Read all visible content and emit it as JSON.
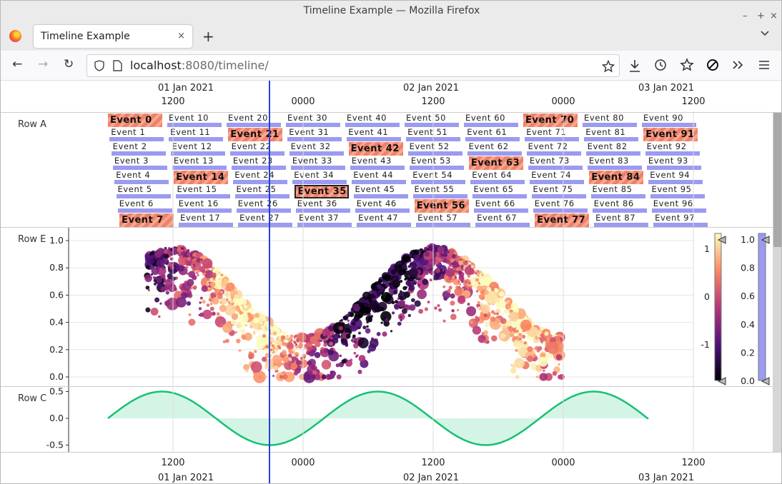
{
  "window": {
    "title": "Timeline Example — Mozilla Firefox",
    "minimize": "–",
    "maximize": "+",
    "close": "×"
  },
  "tab": {
    "label": "Timeline Example",
    "close": "×",
    "new_tab": "+",
    "menu": "⌄"
  },
  "nav": {
    "back": "←",
    "forward": "→",
    "reload": "↻",
    "url_host": "localhost",
    "url_rest": ":8080/timeline/"
  },
  "time_axis": {
    "top_dates": [
      "01 Jan 2021",
      "02 Jan 2021",
      "03 Jan 2021"
    ],
    "ticks": [
      "1200",
      "0000",
      "1200",
      "0000",
      "1200"
    ],
    "bottom_dates": [
      "01 Jan 2021",
      "02 Jan 2021",
      "03 Jan 2021"
    ]
  },
  "rows": [
    "Row A",
    "Row E",
    "Row C"
  ],
  "row_a": {
    "events": [
      "Event 0",
      "Event 1",
      "Event 2",
      "Event 3",
      "Event 4",
      "Event 5",
      "Event 6",
      "Event 7",
      "Event 10",
      "Event 11",
      "Event 12",
      "Event 13",
      "Event 14",
      "Event 15",
      "Event 16",
      "Event 17",
      "Event 20",
      "Event 21",
      "Event 22",
      "Event 23",
      "Event 24",
      "Event 25",
      "Event 26",
      "Event 27",
      "Event 30",
      "Event 31",
      "Event 32",
      "Event 33",
      "Event 34",
      "Event 35",
      "Event 36",
      "Event 37",
      "Event 40",
      "Event 41",
      "Event 42",
      "Event 43",
      "Event 44",
      "Event 45",
      "Event 46",
      "Event 47",
      "Event 50",
      "Event 51",
      "Event 52",
      "Event 53",
      "Event 54",
      "Event 55",
      "Event 56",
      "Event 57",
      "Event 60",
      "Event 61",
      "Event 62",
      "Event 63",
      "Event 64",
      "Event 65",
      "Event 66",
      "Event 67",
      "Event 70",
      "Event 71",
      "Event 72",
      "Event 73",
      "Event 74",
      "Event 75",
      "Event 76",
      "Event 77",
      "Event 80",
      "Event 81",
      "Event 82",
      "Event 83",
      "Event 84",
      "Event 85",
      "Event 86",
      "Event 87",
      "Event 90",
      "Event 91",
      "Event 92",
      "Event 93",
      "Event 94",
      "Event 95",
      "Event 96",
      "Event 97"
    ],
    "highlighted": [
      "Event 0",
      "Event 7",
      "Event 14",
      "Event 21",
      "Event 35",
      "Event 42",
      "Event 56",
      "Event 63",
      "Event 70",
      "Event 77",
      "Event 84",
      "Event 91"
    ],
    "selected": "Event 35"
  },
  "row_e": {
    "y_ticks": [
      "0.0",
      "0.2",
      "0.4",
      "0.6",
      "0.8",
      "1.0"
    ],
    "colorbar_ticks": [
      "1",
      "0",
      "-1"
    ],
    "alpha_ticks": [
      "1.0",
      "0.8",
      "0.6",
      "0.4",
      "0.2",
      "0.0"
    ]
  },
  "row_c": {
    "y_ticks": [
      "0.5",
      "0.0",
      "-0.5"
    ]
  },
  "colors": {
    "accent_line": "#2a3fd6",
    "wave": "#16c172",
    "wave_fill": "#d4f5e6",
    "event_bar": "#9b9bf2",
    "highlight": "#f08a6e"
  }
}
